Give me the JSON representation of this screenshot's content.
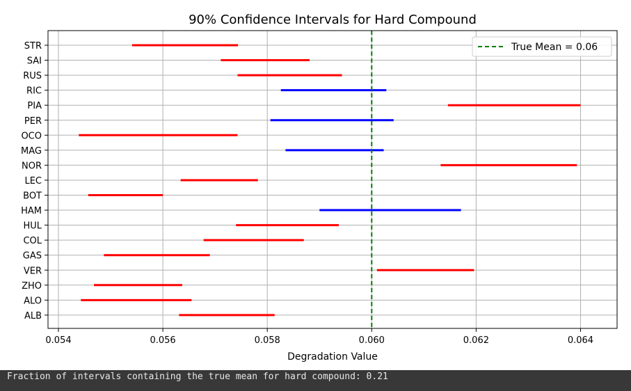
{
  "chart_data": {
    "type": "interval",
    "title": "90% Confidence Intervals for Hard Compound",
    "xlabel": "Degradation Value",
    "ylabel": "",
    "xlim": [
      0.0538,
      0.0647
    ],
    "xticks": [
      0.054,
      0.056,
      0.058,
      0.06,
      0.062,
      0.064
    ],
    "xtick_labels": [
      "0.054",
      "0.056",
      "0.058",
      "0.060",
      "0.062",
      "0.064"
    ],
    "grid": true,
    "true_mean": 0.06,
    "true_mean_color": "#008000",
    "legend": {
      "placement": "top-right",
      "entries": [
        "True Mean = 0.06"
      ]
    },
    "colors": {
      "contains": "#0000ff",
      "excludes": "#ff0000"
    },
    "categories": [
      "STR",
      "SAI",
      "RUS",
      "RIC",
      "PIA",
      "PER",
      "OCO",
      "MAG",
      "NOR",
      "LEC",
      "BOT",
      "HAM",
      "HUL",
      "COL",
      "GAS",
      "VER",
      "ZHO",
      "ALO",
      "ALB"
    ],
    "intervals": [
      {
        "label": "STR",
        "low": 0.05541,
        "high": 0.05744,
        "contains": false
      },
      {
        "label": "SAI",
        "low": 0.05711,
        "high": 0.05881,
        "contains": false
      },
      {
        "label": "RUS",
        "low": 0.05743,
        "high": 0.05943,
        "contains": false
      },
      {
        "label": "RIC",
        "low": 0.05826,
        "high": 0.06028,
        "contains": true
      },
      {
        "label": "PIA",
        "low": 0.06146,
        "high": 0.064,
        "contains": false
      },
      {
        "label": "PER",
        "low": 0.05806,
        "high": 0.06042,
        "contains": true
      },
      {
        "label": "OCO",
        "low": 0.05439,
        "high": 0.05743,
        "contains": false
      },
      {
        "label": "MAG",
        "low": 0.05835,
        "high": 0.06023,
        "contains": true
      },
      {
        "label": "NOR",
        "low": 0.06132,
        "high": 0.06393,
        "contains": false
      },
      {
        "label": "LEC",
        "low": 0.05634,
        "high": 0.05782,
        "contains": false
      },
      {
        "label": "BOT",
        "low": 0.05457,
        "high": 0.056,
        "contains": false
      },
      {
        "label": "HAM",
        "low": 0.059,
        "high": 0.06171,
        "contains": true
      },
      {
        "label": "HUL",
        "low": 0.0574,
        "high": 0.05937,
        "contains": false
      },
      {
        "label": "COL",
        "low": 0.05678,
        "high": 0.0587,
        "contains": false
      },
      {
        "label": "GAS",
        "low": 0.05487,
        "high": 0.0569,
        "contains": false
      },
      {
        "label": "VER",
        "low": 0.0601,
        "high": 0.06196,
        "contains": false
      },
      {
        "label": "ZHO",
        "low": 0.05468,
        "high": 0.05637,
        "contains": false
      },
      {
        "label": "ALO",
        "low": 0.05443,
        "high": 0.05655,
        "contains": false
      },
      {
        "label": "ALB",
        "low": 0.05631,
        "high": 0.05814,
        "contains": false
      }
    ]
  },
  "console": {
    "output": "Fraction of intervals containing the true mean for hard compound: 0.21"
  }
}
